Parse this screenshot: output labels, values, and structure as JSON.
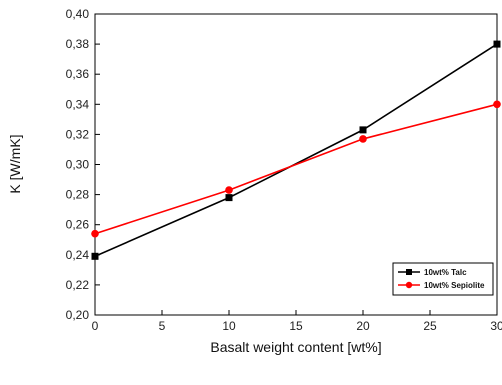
{
  "chart_data": {
    "type": "line",
    "title": "",
    "xlabel": "Basalt weight content [wt%]",
    "ylabel": "K [W/mK]",
    "xlim": [
      0,
      30
    ],
    "ylim": [
      0.2,
      0.4
    ],
    "x_ticks": [
      "0",
      "5",
      "10",
      "15",
      "20",
      "25",
      "30"
    ],
    "y_ticks": [
      "0,20",
      "0,22",
      "0,24",
      "0,26",
      "0,28",
      "0,30",
      "0,32",
      "0,34",
      "0,36",
      "0,38",
      "0,40"
    ],
    "grid": false,
    "legend_position": "bottom-right",
    "series": [
      {
        "name": "10wt% Talc",
        "color": "#000000",
        "marker": "square",
        "x": [
          0,
          10,
          20,
          30
        ],
        "y": [
          0.239,
          0.278,
          0.323,
          0.38
        ]
      },
      {
        "name": "10wt% Sepiolite",
        "color": "#ff0000",
        "marker": "circle",
        "x": [
          0,
          10,
          20,
          30
        ],
        "y": [
          0.254,
          0.283,
          0.317,
          0.34
        ]
      }
    ]
  }
}
